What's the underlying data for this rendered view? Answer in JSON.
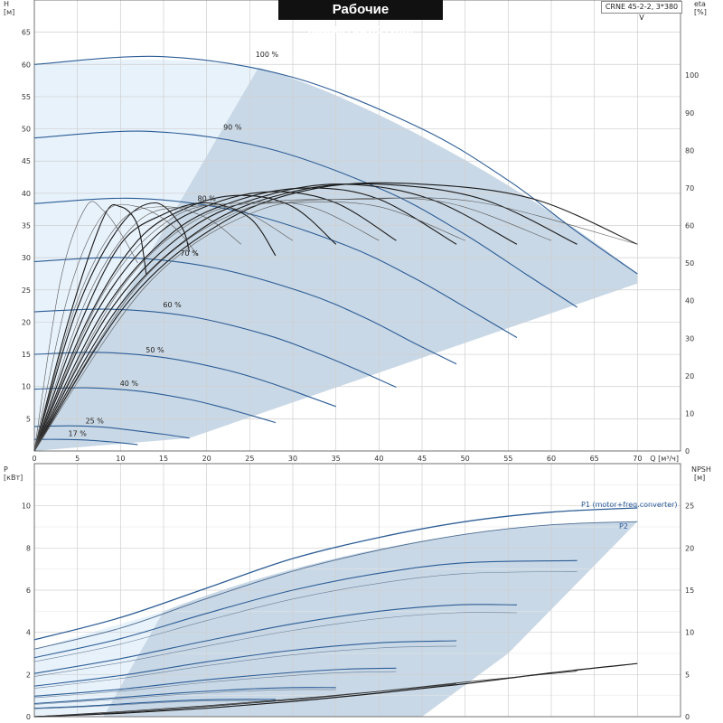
{
  "header": {
    "title": "Рабочие характеристики",
    "model": "CRNE 45-2-2, 3*380 V"
  },
  "colors": {
    "region_light": "#e8f2fb",
    "region_dark": "#c9d8e6",
    "curve_blue": "#2c5d96",
    "curve_black": "#1a1a1a",
    "grid": "#cfcfcf"
  },
  "chart_data": [
    {
      "type": "line",
      "name": "head-eta",
      "xlabel": "Q [м³/ч]",
      "ylabel_left": "H [м]",
      "ylabel_right": "eta [%]",
      "xlim": [
        0,
        75
      ],
      "ylim_left": [
        0,
        70
      ],
      "ylim_right": [
        0,
        120
      ],
      "x_ticks": [
        0,
        5,
        10,
        15,
        20,
        25,
        30,
        35,
        40,
        45,
        50,
        55,
        60,
        65,
        70
      ],
      "y_ticks_left": [
        0,
        5,
        10,
        15,
        20,
        25,
        30,
        35,
        40,
        45,
        50,
        55,
        60,
        65
      ],
      "y_ticks_right": [
        0,
        10,
        20,
        30,
        40,
        50,
        60,
        70,
        80,
        90,
        100
      ],
      "speed_curve_labels": [
        "100 %",
        "90 %",
        "80 %",
        "70 %",
        "60 %",
        "50 %",
        "40 %",
        "25 %",
        "17 %"
      ],
      "head_curves": [
        {
          "label": "100 %",
          "h0": 60,
          "q_end": 70,
          "points": [
            [
              0,
              60
            ],
            [
              15,
              61.2
            ],
            [
              30,
              58
            ],
            [
              45,
              50
            ],
            [
              55,
              42
            ],
            [
              63,
              34
            ],
            [
              70,
              27.5
            ]
          ]
        },
        {
          "label": "90 %",
          "h0": 48.6,
          "q_end": 63,
          "points": [
            [
              0,
              48.6
            ],
            [
              13.5,
              49.6
            ],
            [
              27,
              47
            ],
            [
              40.5,
              40.5
            ],
            [
              49.5,
              34
            ],
            [
              57,
              27.5
            ],
            [
              63,
              22.3
            ]
          ]
        },
        {
          "label": "80 %",
          "h0": 38.4,
          "q_end": 56,
          "points": [
            [
              0,
              38.4
            ],
            [
              12,
              39.2
            ],
            [
              24,
              37.1
            ],
            [
              36,
              32
            ],
            [
              44,
              26.9
            ],
            [
              50.4,
              22
            ],
            [
              56,
              17.6
            ]
          ]
        },
        {
          "label": "70 %",
          "h0": 29.4,
          "q_end": 49,
          "points": [
            [
              0,
              29.4
            ],
            [
              10.5,
              30
            ],
            [
              21,
              28.4
            ],
            [
              31.5,
              24.5
            ],
            [
              38.5,
              20.6
            ],
            [
              44,
              16.8
            ],
            [
              49,
              13.5
            ]
          ]
        },
        {
          "label": "60 %",
          "h0": 21.6,
          "q_end": 42,
          "points": [
            [
              0,
              21.6
            ],
            [
              9,
              22
            ],
            [
              18,
              20.9
            ],
            [
              27,
              18
            ],
            [
              33,
              15.1
            ],
            [
              37.8,
              12.4
            ],
            [
              42,
              9.9
            ]
          ]
        },
        {
          "label": "50 %",
          "h0": 15,
          "q_end": 35,
          "points": [
            [
              0,
              15
            ],
            [
              7.5,
              15.3
            ],
            [
              15,
              14.5
            ],
            [
              22.5,
              12.5
            ],
            [
              27.5,
              10.5
            ],
            [
              31.5,
              8.6
            ],
            [
              35,
              6.9
            ]
          ]
        },
        {
          "label": "40 %",
          "h0": 9.6,
          "q_end": 28,
          "points": [
            [
              0,
              9.6
            ],
            [
              6,
              9.8
            ],
            [
              12,
              9.3
            ],
            [
              18,
              8
            ],
            [
              22,
              6.7
            ],
            [
              25.2,
              5.5
            ],
            [
              28,
              4.4
            ]
          ]
        },
        {
          "label": "25 %",
          "h0": 3.8,
          "q_end": 18,
          "points": [
            [
              0,
              3.8
            ],
            [
              4,
              3.9
            ],
            [
              8,
              3.7
            ],
            [
              12,
              3.1
            ],
            [
              15,
              2.6
            ],
            [
              18,
              2
            ]
          ]
        },
        {
          "label": "17 %",
          "h0": 1.8,
          "q_end": 12,
          "points": [
            [
              0,
              1.8
            ],
            [
              3,
              1.8
            ],
            [
              6,
              1.7
            ],
            [
              9,
              1.4
            ],
            [
              12,
              1
            ]
          ]
        }
      ],
      "eta_curves": [
        {
          "points": [
            [
              0,
              0
            ],
            [
              4,
              35
            ],
            [
              8,
              62
            ],
            [
              10,
              65
            ],
            [
              12,
              60
            ],
            [
              13,
              47
            ]
          ],
          "dark": true
        },
        {
          "points": [
            [
              0,
              0
            ],
            [
              5,
              38
            ],
            [
              10,
              60
            ],
            [
              14,
              66
            ],
            [
              17,
              60
            ],
            [
              18,
              53
            ]
          ],
          "dark": true
        },
        {
          "points": [
            [
              0,
              0
            ],
            [
              5,
              32
            ],
            [
              10,
              55
            ],
            [
              15,
              63
            ],
            [
              20,
              66
            ],
            [
              25,
              62
            ],
            [
              28,
              52
            ]
          ],
          "dark": true
        },
        {
          "points": [
            [
              0,
              0
            ],
            [
              6,
              34
            ],
            [
              12,
              56
            ],
            [
              18,
              65
            ],
            [
              24,
              68
            ],
            [
              30,
              65
            ],
            [
              35,
              55
            ]
          ],
          "dark": true
        },
        {
          "points": [
            [
              0,
              0
            ],
            [
              7,
              36
            ],
            [
              14,
              57
            ],
            [
              21,
              66
            ],
            [
              28,
              69
            ],
            [
              35,
              66
            ],
            [
              42,
              56
            ]
          ],
          "dark": true
        },
        {
          "points": [
            [
              0,
              0
            ],
            [
              8,
              37
            ],
            [
              16,
              58
            ],
            [
              24,
              67
            ],
            [
              32,
              70
            ],
            [
              40,
              67
            ],
            [
              49,
              55
            ]
          ],
          "dark": true
        },
        {
          "points": [
            [
              0,
              0
            ],
            [
              9,
              38
            ],
            [
              18,
              59
            ],
            [
              27,
              68
            ],
            [
              36,
              71
            ],
            [
              46,
              67
            ],
            [
              56,
              55
            ]
          ],
          "dark": true
        },
        {
          "points": [
            [
              0,
              0
            ],
            [
              10,
              39
            ],
            [
              20,
              60
            ],
            [
              30,
              69
            ],
            [
              40,
              71
            ],
            [
              52,
              67
            ],
            [
              63,
              55
            ]
          ],
          "dark": true
        },
        {
          "points": [
            [
              0,
              0
            ],
            [
              11,
              40
            ],
            [
              22,
              61
            ],
            [
              33,
              70
            ],
            [
              45,
              71
            ],
            [
              58,
              67
            ],
            [
              70,
              55
            ]
          ],
          "dark": true
        },
        {
          "points": [
            [
              0,
              0
            ],
            [
              3,
              45
            ],
            [
              6,
              65
            ],
            [
              8,
              64
            ],
            [
              10,
              58
            ],
            [
              12,
              50
            ]
          ],
          "dark": false
        },
        {
          "points": [
            [
              0,
              0
            ],
            [
              4,
              42
            ],
            [
              8,
              63
            ],
            [
              12,
              65
            ],
            [
              16,
              60
            ],
            [
              19,
              52
            ]
          ],
          "dark": false
        },
        {
          "points": [
            [
              0,
              0
            ],
            [
              5,
              40
            ],
            [
              10,
              61
            ],
            [
              15,
              65
            ],
            [
              20,
              62
            ],
            [
              24,
              55
            ]
          ],
          "dark": false
        },
        {
          "points": [
            [
              0,
              0
            ],
            [
              6,
              40
            ],
            [
              12,
              61
            ],
            [
              18,
              65
            ],
            [
              24,
              64
            ],
            [
              30,
              56
            ]
          ],
          "dark": false
        },
        {
          "points": [
            [
              0,
              0
            ],
            [
              8,
              42
            ],
            [
              16,
              62
            ],
            [
              24,
              66
            ],
            [
              32,
              65
            ],
            [
              40,
              56
            ]
          ],
          "dark": false
        },
        {
          "points": [
            [
              0,
              0
            ],
            [
              10,
              43
            ],
            [
              20,
              63
            ],
            [
              30,
              66
            ],
            [
              40,
              65
            ],
            [
              50,
              56
            ]
          ],
          "dark": false
        },
        {
          "points": [
            [
              0,
              0
            ],
            [
              12,
              44
            ],
            [
              24,
              64
            ],
            [
              36,
              67
            ],
            [
              48,
              66
            ],
            [
              60,
              56
            ]
          ],
          "dark": false
        },
        {
          "points": [
            [
              0,
              0
            ],
            [
              13,
              44
            ],
            [
              26,
              64
            ],
            [
              39,
              67
            ],
            [
              52,
              66
            ],
            [
              70,
              55
            ]
          ],
          "dark": false
        }
      ]
    },
    {
      "type": "line",
      "name": "power-npsh",
      "xlabel": "Q [м³/ч]",
      "ylabel_left": "P [кВт]",
      "ylabel_right": "NPSH [м]",
      "xlim": [
        0,
        75
      ],
      "ylim_left": [
        0,
        12
      ],
      "ylim_right": [
        0,
        30
      ],
      "y_ticks_left": [
        0,
        2,
        4,
        6,
        8,
        10
      ],
      "y_ticks_right": [
        0,
        5,
        10,
        15,
        20,
        25
      ],
      "series_labels": [
        "P1 (motor+freq.converter)",
        "P2"
      ],
      "p1_curve": [
        [
          0,
          3.65
        ],
        [
          10,
          4.7
        ],
        [
          20,
          6.1
        ],
        [
          30,
          7.5
        ],
        [
          40,
          8.5
        ],
        [
          50,
          9.25
        ],
        [
          60,
          9.7
        ],
        [
          70,
          9.9
        ]
      ],
      "p2_curve": [
        [
          0,
          3.2
        ],
        [
          10,
          4.2
        ],
        [
          20,
          5.6
        ],
        [
          30,
          6.9
        ],
        [
          40,
          7.9
        ],
        [
          50,
          8.65
        ],
        [
          60,
          9.1
        ],
        [
          70,
          9.25
        ]
      ],
      "p1_speed_curves": [
        [
          [
            0,
            2.8
          ],
          [
            10,
            3.7
          ],
          [
            20,
            4.9
          ],
          [
            30,
            6
          ],
          [
            40,
            6.8
          ],
          [
            50,
            7.3
          ],
          [
            63,
            7.4
          ]
        ],
        [
          [
            0,
            2.05
          ],
          [
            10,
            2.75
          ],
          [
            20,
            3.6
          ],
          [
            30,
            4.4
          ],
          [
            40,
            5
          ],
          [
            49,
            5.3
          ],
          [
            56,
            5.3
          ]
        ],
        [
          [
            0,
            1.45
          ],
          [
            10,
            1.95
          ],
          [
            20,
            2.6
          ],
          [
            30,
            3.15
          ],
          [
            40,
            3.5
          ],
          [
            49,
            3.6
          ]
        ],
        [
          [
            0,
            0.97
          ],
          [
            10,
            1.3
          ],
          [
            20,
            1.75
          ],
          [
            30,
            2.1
          ],
          [
            36,
            2.25
          ],
          [
            42,
            2.3
          ]
        ],
        [
          [
            0,
            0.62
          ],
          [
            8,
            0.85
          ],
          [
            16,
            1.1
          ],
          [
            24,
            1.3
          ],
          [
            30,
            1.38
          ],
          [
            35,
            1.38
          ]
        ],
        [
          [
            0,
            0.4
          ],
          [
            6,
            0.5
          ],
          [
            12,
            0.65
          ],
          [
            18,
            0.78
          ],
          [
            23,
            0.82
          ],
          [
            28,
            0.82
          ]
        ]
      ],
      "npsh_curve": [
        [
          0,
          0
        ],
        [
          10,
          0.4
        ],
        [
          20,
          1
        ],
        [
          30,
          1.8
        ],
        [
          40,
          2.8
        ],
        [
          50,
          3.9
        ],
        [
          60,
          5.2
        ],
        [
          70,
          6.3
        ]
      ],
      "npsh_speed_curves": [
        [
          [
            0,
            0
          ],
          [
            10,
            0.5
          ],
          [
            20,
            1.2
          ],
          [
            30,
            2
          ],
          [
            40,
            3
          ],
          [
            50,
            4.1
          ],
          [
            63,
            5.4
          ]
        ],
        [
          [
            0,
            0
          ],
          [
            10,
            0.6
          ],
          [
            20,
            1.3
          ],
          [
            30,
            2.1
          ],
          [
            40,
            3
          ],
          [
            49,
            3.9
          ]
        ]
      ]
    }
  ]
}
